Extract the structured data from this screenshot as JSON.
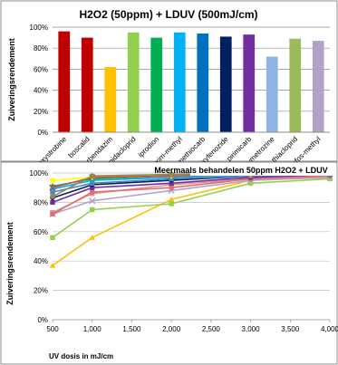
{
  "chart_data": [
    {
      "type": "bar",
      "title": "H2O2 (50ppm) + LDUV (500mJ/cm)",
      "ylabel": "Zuiveringsrendement",
      "xlabel": "",
      "ylim": [
        0,
        100
      ],
      "yticks": [
        "0%",
        "20%",
        "40%",
        "60%",
        "80%",
        "100%"
      ],
      "grid": true,
      "categories": [
        "azoxystrobine",
        "boscalid",
        "carbendazim",
        "imidacloprid",
        "iprodion",
        "kresoxim-methyl",
        "methiocarb",
        "methoxyfenozide",
        "pirimicarb",
        "pymetrozine",
        "thiacloprid",
        "tolclofos-methyl"
      ],
      "values": [
        96,
        90,
        62,
        95,
        90,
        95,
        94,
        91,
        93,
        72,
        89,
        87
      ],
      "colors": [
        "#c00000",
        "#c00000",
        "#ffc000",
        "#92d050",
        "#00b050",
        "#00b0f0",
        "#0070c0",
        "#002060",
        "#7030a0",
        "#8eb4e3",
        "#9bbb59",
        "#b3a2c7"
      ]
    },
    {
      "type": "line",
      "title": "Meermaals behandelen 50ppm H2O2 + LDUV",
      "ylabel": "Zuiveringsrendement",
      "xlabel": "UV dosis in mJ/cm",
      "xlim": [
        500,
        4000
      ],
      "ylim": [
        0,
        100
      ],
      "xticks": [
        "500",
        "1,000",
        "1,500",
        "2,000",
        "2,500",
        "3,000",
        "3,500",
        "4,000"
      ],
      "yticks": [
        "0%",
        "20%",
        "40%",
        "60%",
        "80%",
        "100%"
      ],
      "grid": true,
      "x": [
        500,
        1000,
        2000,
        3000,
        4000
      ],
      "series": [
        {
          "color": "#ffc000",
          "marker": "triangle",
          "values": [
            37,
            56,
            82,
            95,
            97
          ]
        },
        {
          "color": "#92d050",
          "marker": "square",
          "values": [
            56,
            75,
            79,
            93,
            96
          ]
        },
        {
          "color": "#b3a2c7",
          "marker": "x",
          "values": [
            72,
            81,
            88,
            95,
            97
          ]
        },
        {
          "color": "#d99694",
          "marker": "square",
          "values": [
            73,
            86,
            92,
            96,
            98
          ]
        },
        {
          "color": "#e46c6c",
          "marker": "circle",
          "values": [
            72,
            87,
            90,
            96,
            98
          ]
        },
        {
          "color": "#7030a0",
          "marker": "square",
          "values": [
            80,
            90,
            93,
            97,
            99
          ]
        },
        {
          "color": "#002060",
          "marker": "diamond",
          "values": [
            83,
            92,
            95,
            98,
            99
          ]
        },
        {
          "color": "#4f81bd",
          "marker": "square",
          "values": [
            87,
            93,
            96,
            98,
            99
          ]
        },
        {
          "color": "#00b0f0",
          "marker": "circle",
          "values": [
            89,
            95,
            97,
            99,
            100
          ]
        },
        {
          "color": "#00b050",
          "marker": "diamond",
          "values": [
            91,
            96,
            98,
            99,
            100
          ]
        },
        {
          "color": "#ffff00",
          "marker": "circle",
          "values": [
            95,
            97,
            98,
            99,
            100
          ]
        },
        {
          "color": "#c0504d",
          "marker": "x",
          "values": [
            90,
            97,
            98,
            99,
            100
          ]
        },
        {
          "color": "#938953",
          "marker": "circle",
          "values": [
            84,
            98,
            99,
            100,
            100
          ]
        }
      ]
    }
  ]
}
